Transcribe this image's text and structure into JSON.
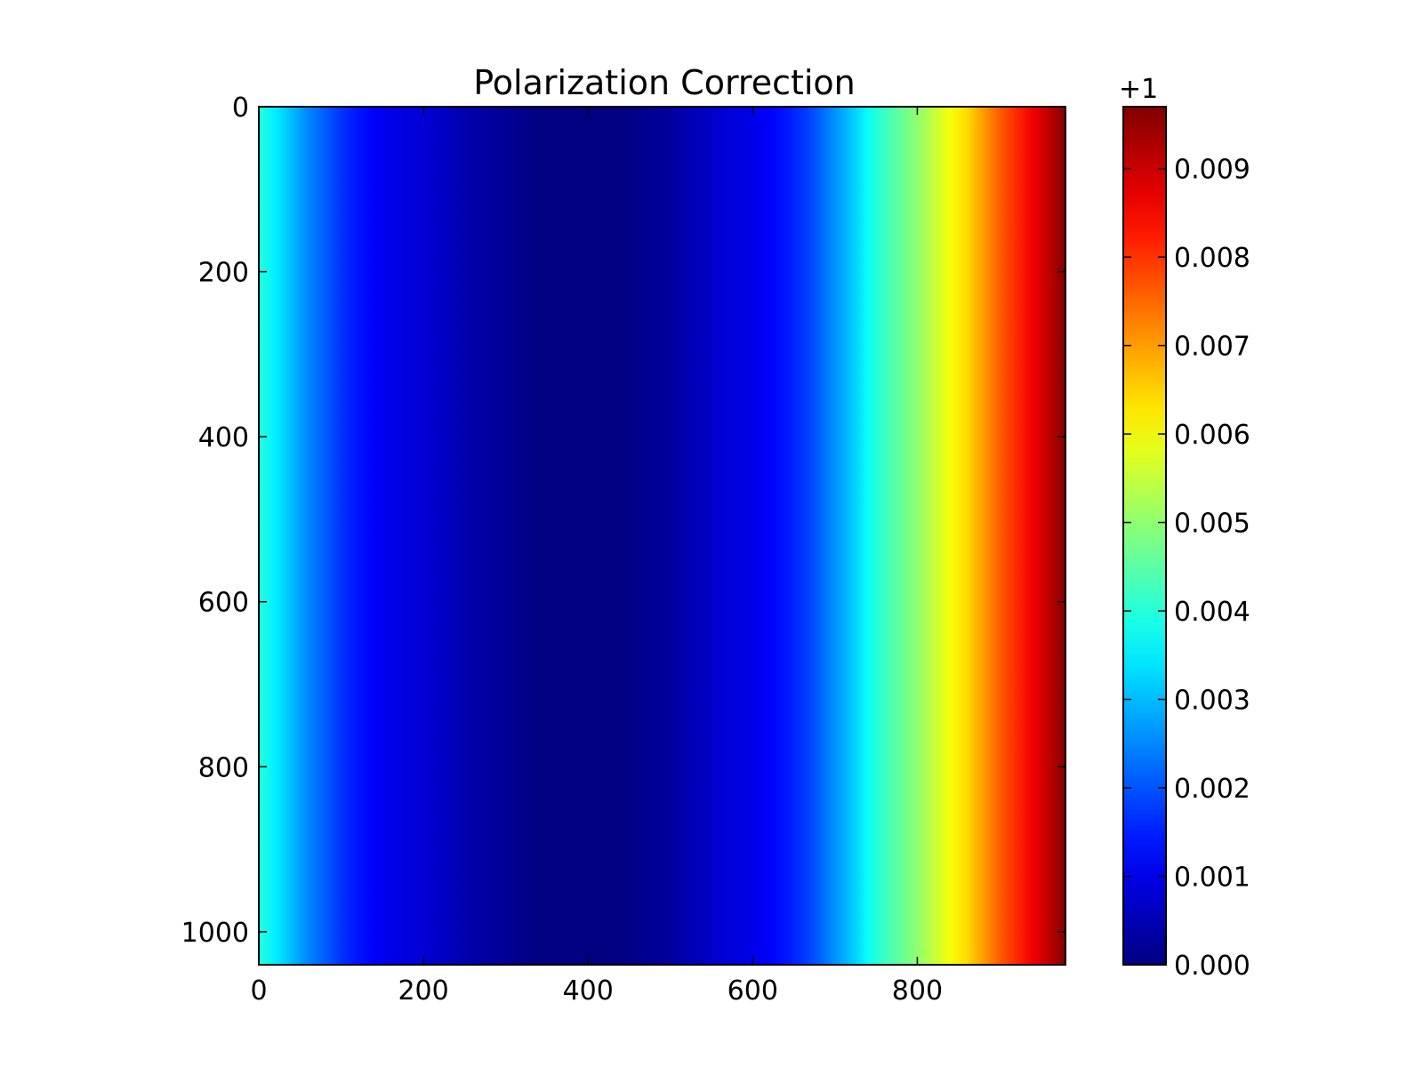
{
  "chart_data": {
    "type": "heatmap",
    "title": "Polarization Correction",
    "xlabel": "",
    "ylabel": "",
    "x_range": [
      0,
      980
    ],
    "y_range": [
      1040,
      0
    ],
    "x_ticks": [
      0,
      200,
      400,
      600,
      800
    ],
    "y_ticks": [
      0,
      200,
      400,
      600,
      800,
      1000
    ],
    "colormap": "jet",
    "grid": false,
    "description_of_field": "values vary along x only; constant along y",
    "column_profile": {
      "x": [
        0,
        20,
        40,
        60,
        80,
        100,
        120,
        140,
        160,
        180,
        200,
        220,
        240,
        260,
        280,
        300,
        320,
        340,
        360,
        380,
        400,
        420,
        440,
        460,
        480,
        500,
        520,
        540,
        560,
        580,
        600,
        620,
        640,
        660,
        680,
        700,
        720,
        740,
        760,
        780,
        800,
        820,
        840,
        860,
        880,
        900,
        920,
        940,
        960,
        980
      ],
      "value": [
        1.004,
        1.0035,
        1.003,
        1.0025,
        1.0021,
        1.0017,
        1.0014,
        1.0012,
        1.001,
        1.0009,
        1.0008,
        1.0007,
        1.0005,
        1.0004,
        1.0003,
        1.0002,
        1.0001,
        1.0,
        1.0,
        1.0,
        1.0,
        1.0,
        1.0,
        1.0001,
        1.0002,
        1.0003,
        1.0005,
        1.0006,
        1.0008,
        1.0009,
        1.001,
        1.0012,
        1.0014,
        1.0017,
        1.0021,
        1.0026,
        1.0031,
        1.0037,
        1.0042,
        1.0046,
        1.005,
        1.0055,
        1.006,
        1.0064,
        1.007,
        1.0076,
        1.0081,
        1.0086,
        1.0091,
        1.0097
      ]
    },
    "colorbar": {
      "offset_label": "+1",
      "range": [
        0.0,
        0.0097
      ],
      "ticks": [
        0.0,
        0.001,
        0.002,
        0.003,
        0.004,
        0.005,
        0.006,
        0.007,
        0.008,
        0.009
      ],
      "tick_labels": [
        "0.000",
        "0.001",
        "0.002",
        "0.003",
        "0.004",
        "0.005",
        "0.006",
        "0.007",
        "0.008",
        "0.009"
      ]
    }
  }
}
